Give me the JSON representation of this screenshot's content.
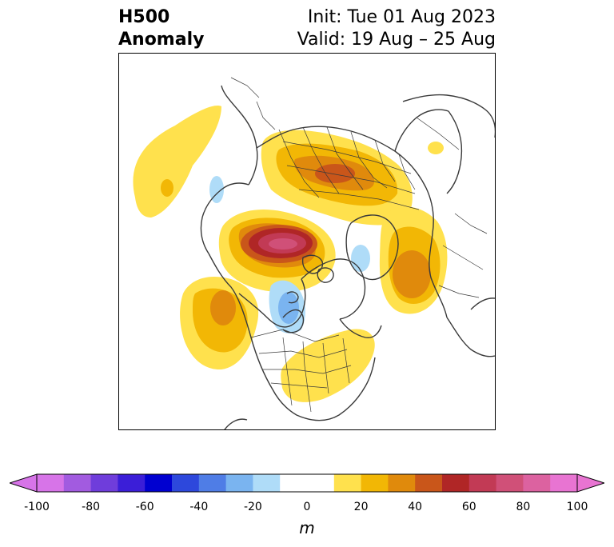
{
  "header": {
    "title_line1": "H500",
    "title_line2": "Anomaly",
    "init_text": "Init: Tue 01 Aug 2023",
    "valid_text": "Valid: 19 Aug – 25 Aug"
  },
  "colorbar": {
    "unit": "m",
    "ticks": [
      "-100",
      "-80",
      "-60",
      "-40",
      "-20",
      "0",
      "20",
      "40",
      "60",
      "80",
      "100"
    ],
    "bins": [
      {
        "lo": -100,
        "hi": -90,
        "color": "#d774e8"
      },
      {
        "lo": -90,
        "hi": -80,
        "color": "#a25be0"
      },
      {
        "lo": -80,
        "hi": -70,
        "color": "#6f3ddb"
      },
      {
        "lo": -70,
        "hi": -60,
        "color": "#3b1ed8"
      },
      {
        "lo": -60,
        "hi": -50,
        "color": "#0000d0"
      },
      {
        "lo": -50,
        "hi": -40,
        "color": "#2d48dc"
      },
      {
        "lo": -40,
        "hi": -30,
        "color": "#4f7de6"
      },
      {
        "lo": -30,
        "hi": -20,
        "color": "#7ab4f0"
      },
      {
        "lo": -20,
        "hi": -10,
        "color": "#afdcf8"
      },
      {
        "lo": -10,
        "hi": 10,
        "color": "#ffffff"
      },
      {
        "lo": 10,
        "hi": 20,
        "color": "#ffe14d"
      },
      {
        "lo": 20,
        "hi": 30,
        "color": "#f2b705"
      },
      {
        "lo": 30,
        "hi": 40,
        "color": "#e08a0c"
      },
      {
        "lo": 40,
        "hi": 50,
        "color": "#c9561a"
      },
      {
        "lo": 50,
        "hi": 60,
        "color": "#b02626"
      },
      {
        "lo": 60,
        "hi": 70,
        "color": "#c23a55"
      },
      {
        "lo": 70,
        "hi": 80,
        "color": "#d05078"
      },
      {
        "lo": 80,
        "hi": 90,
        "color": "#dc62a0"
      },
      {
        "lo": 90,
        "hi": 100,
        "color": "#e874d2"
      }
    ],
    "under_color": "#d774e8",
    "over_color": "#e874d2"
  },
  "map": {
    "anomaly_features": [
      {
        "name": "alaska-ridge",
        "sign": "positive",
        "peak_m": 60
      },
      {
        "name": "northern-eurasia-ridge",
        "sign": "positive",
        "peak_m": 45
      },
      {
        "name": "north-atlantic-ridge",
        "sign": "positive",
        "peak_m": 35
      },
      {
        "name": "north-pacific-ridge",
        "sign": "positive",
        "peak_m": 30
      },
      {
        "name": "eastern-us-ridge",
        "sign": "positive",
        "peak_m": 15
      },
      {
        "name": "hudson-bay-trough",
        "sign": "negative",
        "peak_m": -25
      },
      {
        "name": "greenland-sea-trough",
        "sign": "negative",
        "peak_m": -15
      },
      {
        "name": "siberia-coast-trough",
        "sign": "negative",
        "peak_m": -15
      }
    ]
  }
}
